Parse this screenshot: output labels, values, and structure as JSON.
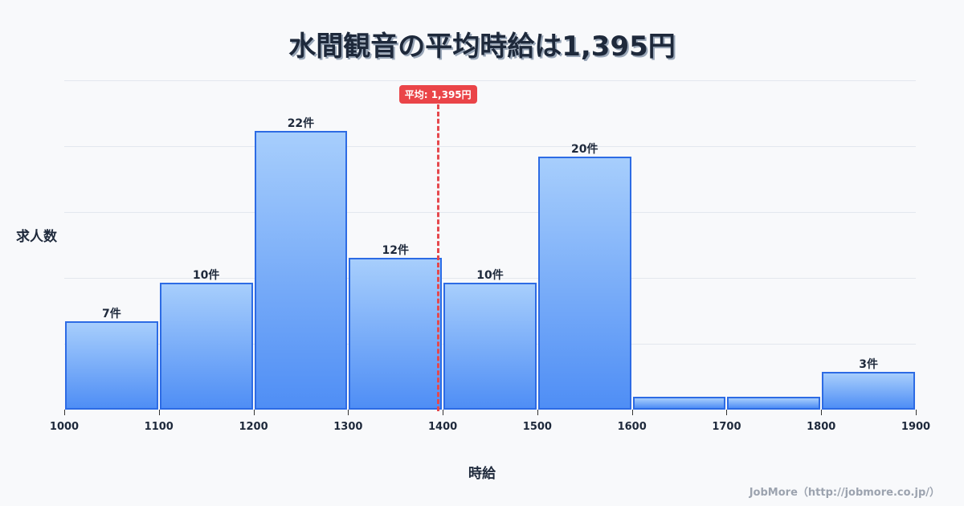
{
  "title": "水間観音の平均時給は1,395円",
  "axis": {
    "ylabel": "求人数",
    "xlabel": "時給"
  },
  "average": {
    "label": "平均: 1,395円",
    "value": 1395
  },
  "footer": "JobMore（http://jobmore.co.jp/）",
  "colors": {
    "bar_border": "#2d6be4",
    "bar_top": "#a7cefc",
    "bar_bottom": "#4f8ef5",
    "avg_line": "#e5484d"
  },
  "bars": [
    {
      "from": 1000,
      "to": 1100,
      "count": 7,
      "label": "7件"
    },
    {
      "from": 1100,
      "to": 1200,
      "count": 10,
      "label": "10件"
    },
    {
      "from": 1200,
      "to": 1300,
      "count": 22,
      "label": "22件"
    },
    {
      "from": 1300,
      "to": 1400,
      "count": 12,
      "label": "12件"
    },
    {
      "from": 1400,
      "to": 1500,
      "count": 10,
      "label": "10件"
    },
    {
      "from": 1500,
      "to": 1600,
      "count": 20,
      "label": "20件"
    },
    {
      "from": 1600,
      "to": 1700,
      "count": 1,
      "label": ""
    },
    {
      "from": 1700,
      "to": 1800,
      "count": 1,
      "label": ""
    },
    {
      "from": 1800,
      "to": 1900,
      "count": 3,
      "label": "3件"
    }
  ],
  "xticks": [
    "1000",
    "1100",
    "1200",
    "1300",
    "1400",
    "1500",
    "1600",
    "1700",
    "1800",
    "1900"
  ],
  "chart_data": {
    "type": "bar",
    "title": "水間観音の平均時給は1,395円",
    "xlabel": "時給",
    "ylabel": "求人数",
    "categories": [
      "1000-1100",
      "1100-1200",
      "1200-1300",
      "1300-1400",
      "1400-1500",
      "1500-1600",
      "1600-1700",
      "1700-1800",
      "1800-1900"
    ],
    "values": [
      7,
      10,
      22,
      12,
      10,
      20,
      1,
      1,
      3
    ],
    "data_labels": [
      "7件",
      "10件",
      "22件",
      "12件",
      "10件",
      "20件",
      "",
      "",
      "3件"
    ],
    "xlim": [
      1000,
      1900
    ],
    "ylim": [
      0,
      26
    ],
    "grid": true,
    "annotations": [
      {
        "type": "vline",
        "x": 1395,
        "label": "平均: 1,395円"
      }
    ]
  }
}
